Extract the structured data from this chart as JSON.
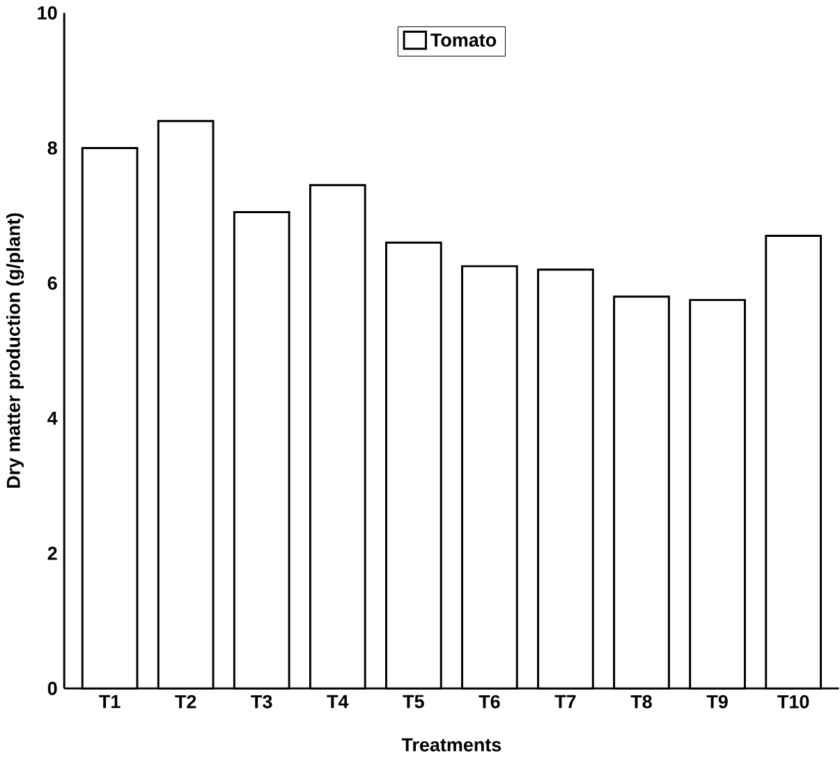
{
  "chart_data": {
    "type": "bar",
    "xlabel": "Treatments",
    "ylabel": "Dry matter production (g/plant)",
    "categories": [
      "T1",
      "T2",
      "T3",
      "T4",
      "T5",
      "T6",
      "T7",
      "T8",
      "T9",
      "T10"
    ],
    "series": [
      {
        "name": "Tomato",
        "color": "#000000",
        "values": [
          8.0,
          8.4,
          7.05,
          7.45,
          6.6,
          6.25,
          6.2,
          5.8,
          5.75,
          6.7
        ]
      }
    ],
    "ylim": [
      0,
      10
    ],
    "yticks": [
      0,
      2,
      4,
      6,
      8,
      10
    ],
    "legend": "top"
  }
}
